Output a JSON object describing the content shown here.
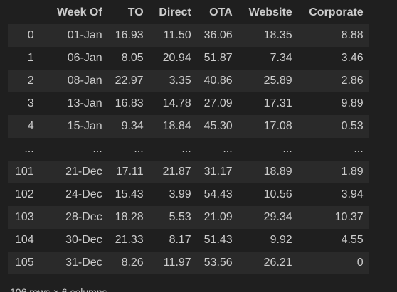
{
  "table": {
    "columns": [
      "",
      "Week Of",
      "TO",
      "Direct",
      "OTA",
      "Website",
      "Corporate"
    ],
    "rows": [
      [
        "0",
        "01-Jan",
        "16.93",
        "11.50",
        "36.06",
        "18.35",
        "8.88"
      ],
      [
        "1",
        "06-Jan",
        "8.05",
        "20.94",
        "51.87",
        "7.34",
        "3.46"
      ],
      [
        "2",
        "08-Jan",
        "22.97",
        "3.35",
        "40.86",
        "25.89",
        "2.86"
      ],
      [
        "3",
        "13-Jan",
        "16.83",
        "14.78",
        "27.09",
        "17.31",
        "9.89"
      ],
      [
        "4",
        "15-Jan",
        "9.34",
        "18.84",
        "45.30",
        "17.08",
        "0.53"
      ],
      [
        "...",
        "...",
        "...",
        "...",
        "...",
        "...",
        "..."
      ],
      [
        "101",
        "21-Dec",
        "17.11",
        "21.87",
        "31.17",
        "18.89",
        "1.89"
      ],
      [
        "102",
        "24-Dec",
        "15.43",
        "3.99",
        "54.43",
        "10.56",
        "3.94"
      ],
      [
        "103",
        "28-Dec",
        "18.28",
        "5.53",
        "21.09",
        "29.34",
        "10.37"
      ],
      [
        "104",
        "30-Dec",
        "21.33",
        "8.17",
        "51.43",
        "9.92",
        "4.55"
      ],
      [
        "105",
        "31-Dec",
        "8.26",
        "11.97",
        "53.56",
        "26.21",
        "0"
      ]
    ]
  },
  "footer": {
    "shape_text": "106 rows × 6 columns"
  }
}
